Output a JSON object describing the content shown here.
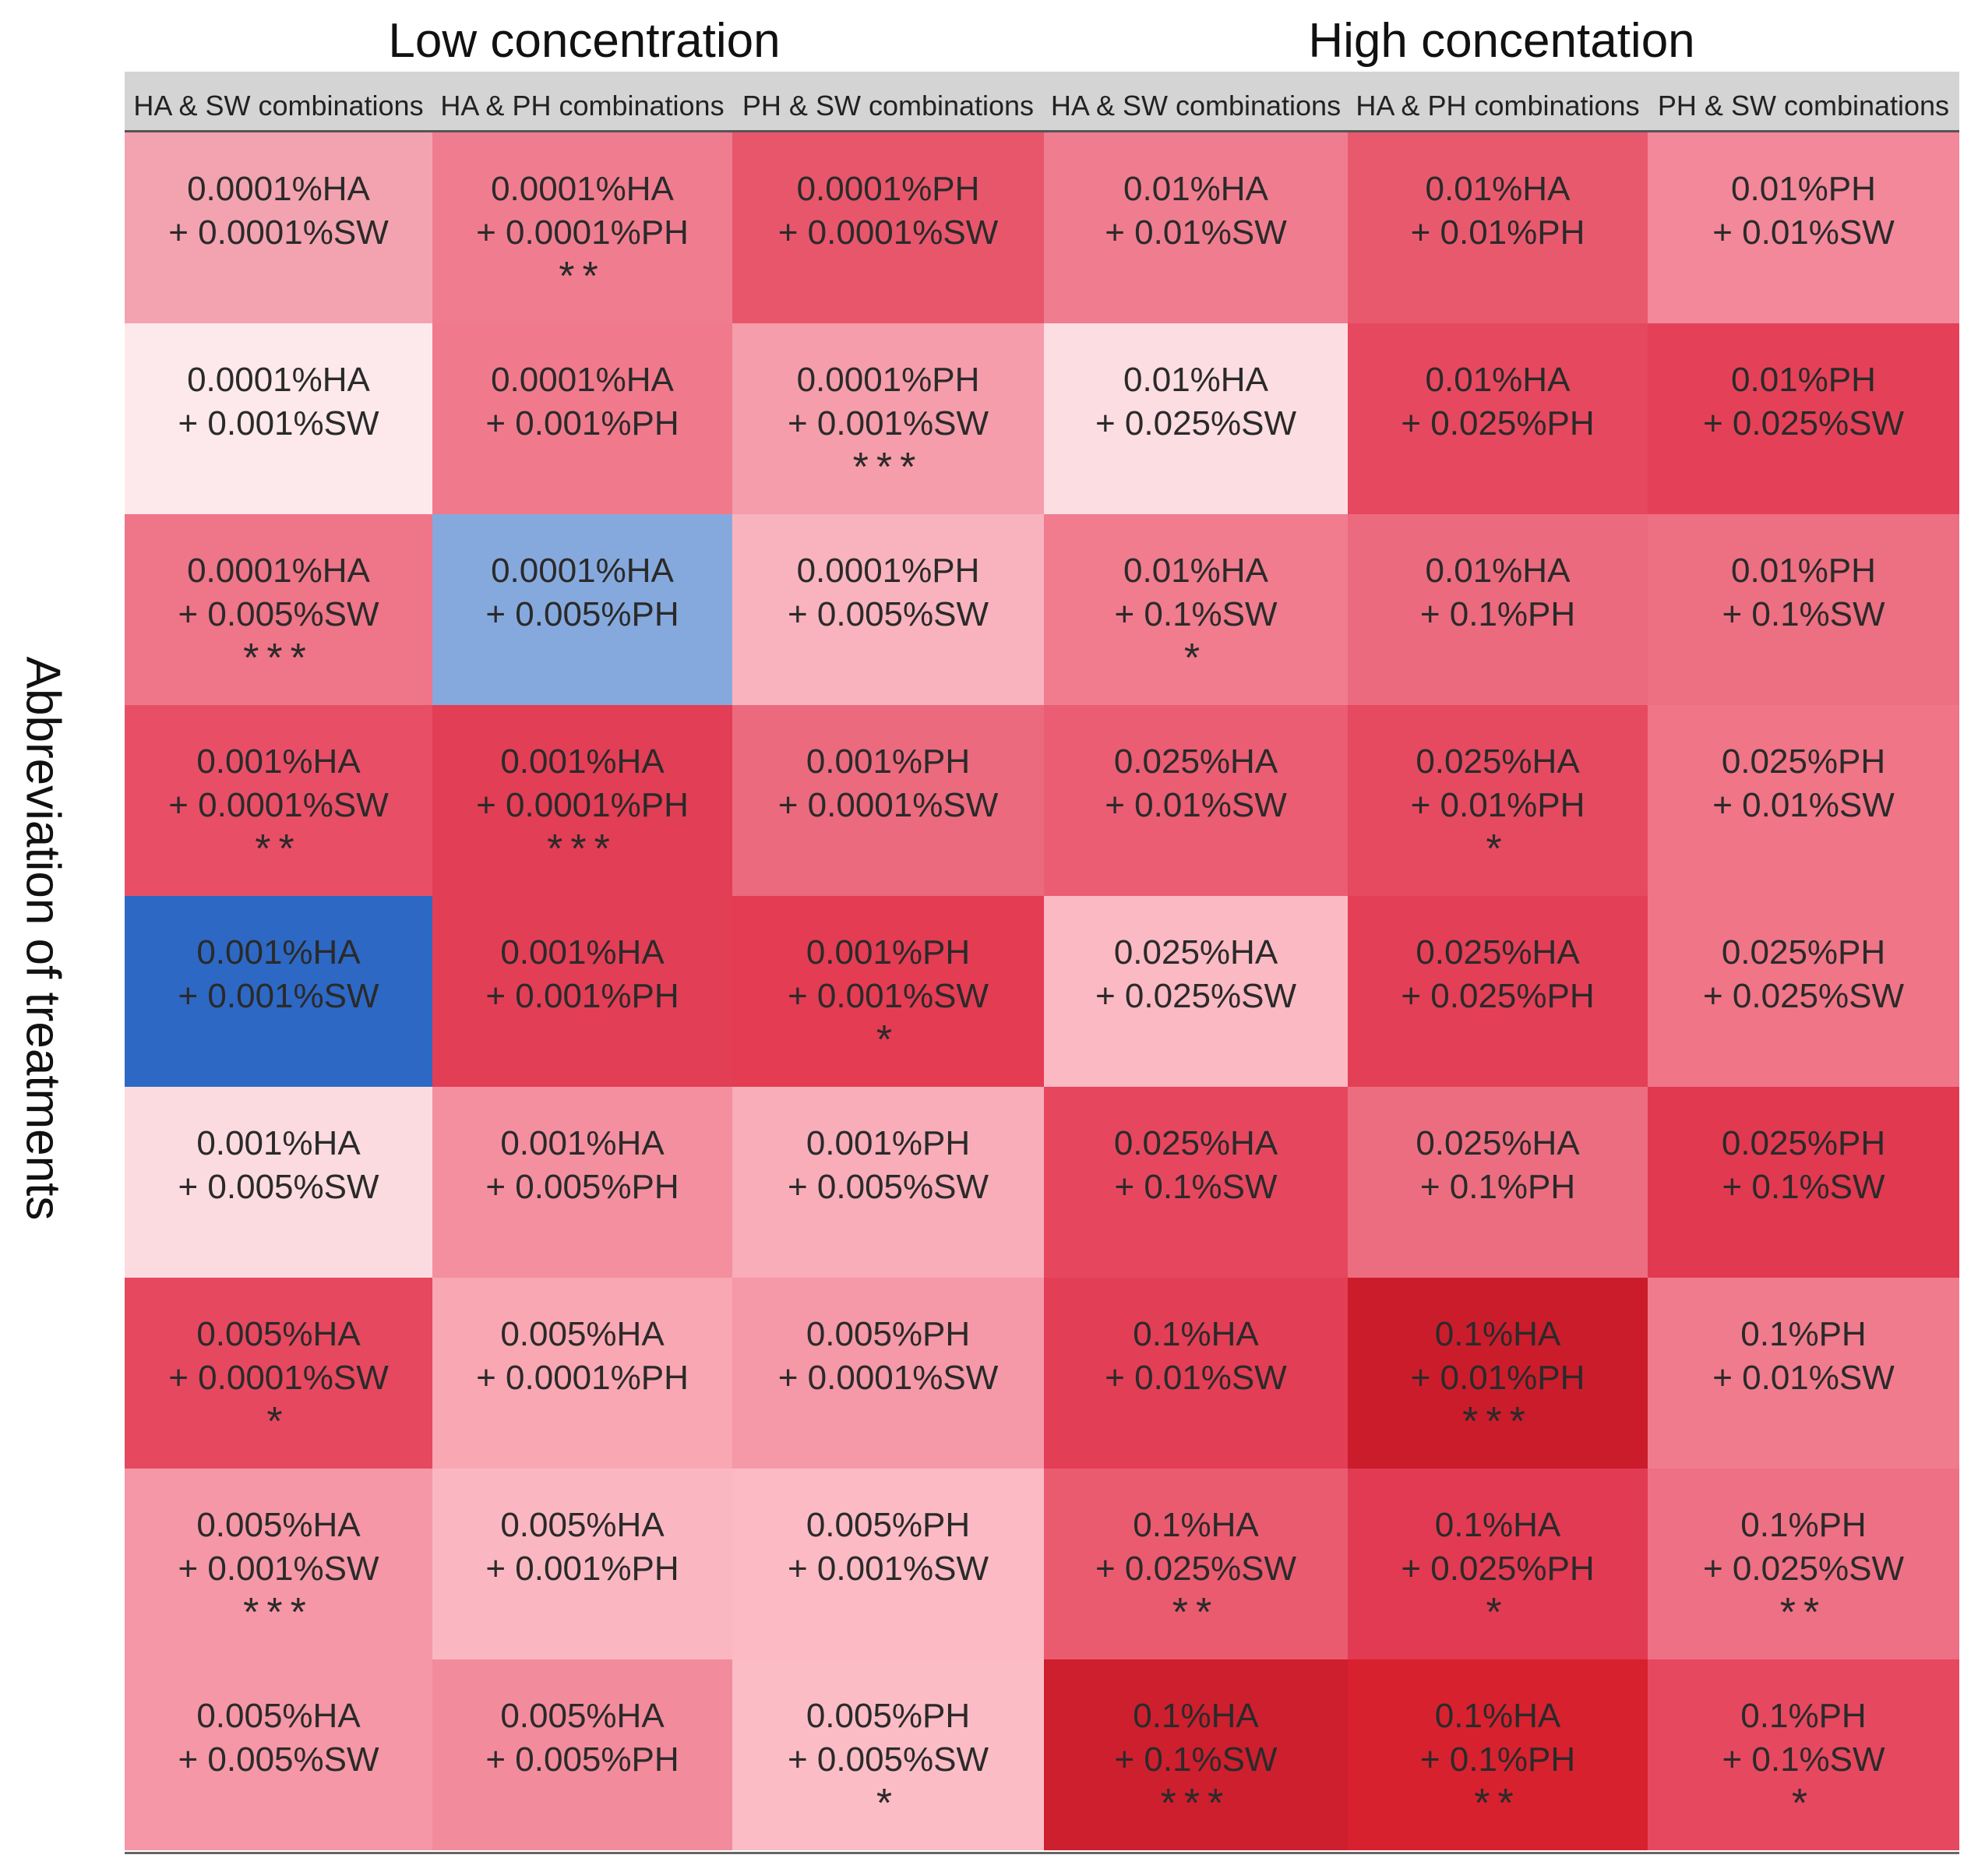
{
  "chart_data": {
    "type": "heatmap",
    "title": "",
    "ylabel": "Abbreviation of treatments",
    "xlabel": "",
    "column_groups": [
      {
        "label": "Low concentration",
        "span": 3
      },
      {
        "label": "High concentation",
        "span": 3
      }
    ],
    "columns": [
      "HA & SW combinations",
      "HA & PH combinations",
      "PH & SW combinations",
      "HA & SW combinations",
      "HA & PH combinations",
      "PH &  SW combinations"
    ],
    "grid_lines": false,
    "legend": "none",
    "rows": [
      [
        {
          "line1": "0.0001%HA",
          "line2": "+ 0.0001%SW",
          "sig": "",
          "color": "#f3a3b0"
        },
        {
          "line1": "0.0001%HA",
          "line2": "+ 0.0001%PH",
          "sig": "**",
          "color": "#f07d8f"
        },
        {
          "line1": "0.0001%PH",
          "line2": "+ 0.0001%SW",
          "sig": "",
          "color": "#e8566b"
        },
        {
          "line1": "0.01%HA",
          "line2": "+ 0.01%SW",
          "sig": "",
          "color": "#f07d8f"
        },
        {
          "line1": "0.01%HA",
          "line2": "+ 0.01%PH",
          "sig": "",
          "color": "#e9596e"
        },
        {
          "line1": "0.01%PH",
          "line2": "+ 0.01%SW",
          "sig": "",
          "color": "#f2889a"
        }
      ],
      [
        {
          "line1": "0.0001%HA",
          "line2": "+ 0.001%SW",
          "sig": "",
          "color": "#fde9ec"
        },
        {
          "line1": "0.0001%HA",
          "line2": "+ 0.001%PH",
          "sig": "",
          "color": "#f07a8c"
        },
        {
          "line1": "0.0001%PH",
          "line2": "+ 0.001%SW",
          "sig": "***",
          "color": "#f59dab"
        },
        {
          "line1": "0.01%HA",
          "line2": "+ 0.025%SW",
          "sig": "",
          "color": "#fcdde2"
        },
        {
          "line1": "0.01%HA",
          "line2": "+ 0.025%PH",
          "sig": "",
          "color": "#e6485f"
        },
        {
          "line1": "0.01%PH",
          "line2": "+ 0.025%SW",
          "sig": "",
          "color": "#e44158"
        }
      ],
      [
        {
          "line1": "0.0001%HA",
          "line2": "+ 0.005%SW",
          "sig": "***",
          "color": "#ef7588"
        },
        {
          "line1": "0.0001%HA",
          "line2": "+ 0.005%PH",
          "sig": "",
          "color": "#86a9dd"
        },
        {
          "line1": "0.0001%PH",
          "line2": "+ 0.005%SW",
          "sig": "",
          "color": "#f9b3be"
        },
        {
          "line1": "0.01%HA",
          "line2": "+ 0.1%SW",
          "sig": "*",
          "color": "#f07c8e"
        },
        {
          "line1": "0.01%HA",
          "line2": "+ 0.1%PH",
          "sig": "",
          "color": "#ec6a7e"
        },
        {
          "line1": "0.01%PH",
          "line2": "+ 0.1%SW",
          "sig": "",
          "color": "#ed6f82"
        }
      ],
      [
        {
          "line1": "0.001%HA",
          "line2": "+ 0.0001%SW",
          "sig": "**",
          "color": "#e84f66"
        },
        {
          "line1": "0.001%HA",
          "line2": "+ 0.0001%PH",
          "sig": "***",
          "color": "#e23e55"
        },
        {
          "line1": "0.001%PH",
          "line2": "+ 0.0001%SW",
          "sig": "",
          "color": "#ec6a7e"
        },
        {
          "line1": "0.025%HA",
          "line2": "+ 0.01%SW",
          "sig": "",
          "color": "#ea5d72"
        },
        {
          "line1": "0.025%HA",
          "line2": "+ 0.01%PH",
          "sig": "*",
          "color": "#e54a61"
        },
        {
          "line1": "0.025%PH",
          "line2": "+ 0.01%SW",
          "sig": "",
          "color": "#ef7587"
        }
      ],
      [
        {
          "line1": "0.001%HA",
          "line2": "+ 0.001%SW",
          "sig": "",
          "color": "#2d68c4"
        },
        {
          "line1": "0.001%HA",
          "line2": "+ 0.001%PH",
          "sig": "",
          "color": "#e23e56"
        },
        {
          "line1": "0.001%PH",
          "line2": "+ 0.001%SW",
          "sig": "*",
          "color": "#e33c53"
        },
        {
          "line1": "0.025%HA",
          "line2": "+ 0.025%SW",
          "sig": "",
          "color": "#fbb9c3"
        },
        {
          "line1": "0.025%HA",
          "line2": "+ 0.025%PH",
          "sig": "",
          "color": "#e33f57"
        },
        {
          "line1": "0.025%PH",
          "line2": "+ 0.025%SW",
          "sig": "",
          "color": "#ef7587"
        }
      ],
      [
        {
          "line1": "0.001%HA",
          "line2": "+ 0.005%SW",
          "sig": "",
          "color": "#fcdbe0"
        },
        {
          "line1": "0.001%HA",
          "line2": "+ 0.005%PH",
          "sig": "",
          "color": "#f48fa0"
        },
        {
          "line1": "0.001%PH",
          "line2": "+ 0.005%SW",
          "sig": "",
          "color": "#f8adb9"
        },
        {
          "line1": "0.025%HA",
          "line2": "+ 0.1%SW",
          "sig": "",
          "color": "#e6475e"
        },
        {
          "line1": "0.025%HA",
          "line2": "+ 0.1%PH",
          "sig": "",
          "color": "#ed6d80"
        },
        {
          "line1": "0.025%PH",
          "line2": "+ 0.1%SW",
          "sig": "",
          "color": "#e13950"
        }
      ],
      [
        {
          "line1": "0.005%HA",
          "line2": "+ 0.0001%SW",
          "sig": "*",
          "color": "#e6485f"
        },
        {
          "line1": "0.005%HA",
          "line2": "+ 0.0001%PH",
          "sig": "",
          "color": "#f8a7b3"
        },
        {
          "line1": "0.005%PH",
          "line2": "+ 0.0001%SW",
          "sig": "",
          "color": "#f598a7"
        },
        {
          "line1": "0.1%HA",
          "line2": "+ 0.01%SW",
          "sig": "",
          "color": "#e23e55"
        },
        {
          "line1": "0.1%HA",
          "line2": "+ 0.01%PH",
          "sig": "***",
          "color": "#cb1c2c"
        },
        {
          "line1": "0.1%PH",
          "line2": "+ 0.01%SW",
          "sig": "",
          "color": "#f07b8d"
        }
      ],
      [
        {
          "line1": "0.005%HA",
          "line2": "+ 0.001%SW",
          "sig": "***",
          "color": "#f597a6"
        },
        {
          "line1": "0.005%HA",
          "line2": "+ 0.001%PH",
          "sig": "",
          "color": "#fab7c1"
        },
        {
          "line1": "0.005%PH",
          "line2": "+ 0.001%SW",
          "sig": "",
          "color": "#fbbac4"
        },
        {
          "line1": "0.1%HA",
          "line2": "+ 0.025%SW",
          "sig": "**",
          "color": "#ea5b70"
        },
        {
          "line1": "0.1%HA",
          "line2": "+ 0.025%PH",
          "sig": "*",
          "color": "#e23a52"
        },
        {
          "line1": "0.1%PH",
          "line2": "+ 0.025%SW",
          "sig": "**",
          "color": "#ee7084"
        }
      ],
      [
        {
          "line1": "0.005%HA",
          "line2": "+ 0.005%SW",
          "sig": "",
          "color": "#f597a6"
        },
        {
          "line1": "0.005%HA",
          "line2": "+ 0.005%PH",
          "sig": "",
          "color": "#f28b9c"
        },
        {
          "line1": "0.005%PH",
          "line2": "+ 0.005%SW",
          "sig": "*",
          "color": "#fbbcc6"
        },
        {
          "line1": "0.1%HA",
          "line2": "+ 0.1%SW",
          "sig": "***",
          "color": "#cd1f2e"
        },
        {
          "line1": "0.1%HA",
          "line2": "+ 0.1%PH",
          "sig": "**",
          "color": "#d7212e"
        },
        {
          "line1": "0.1%PH",
          "line2": "+ 0.1%SW",
          "sig": "*",
          "color": "#e6485f"
        }
      ]
    ]
  }
}
